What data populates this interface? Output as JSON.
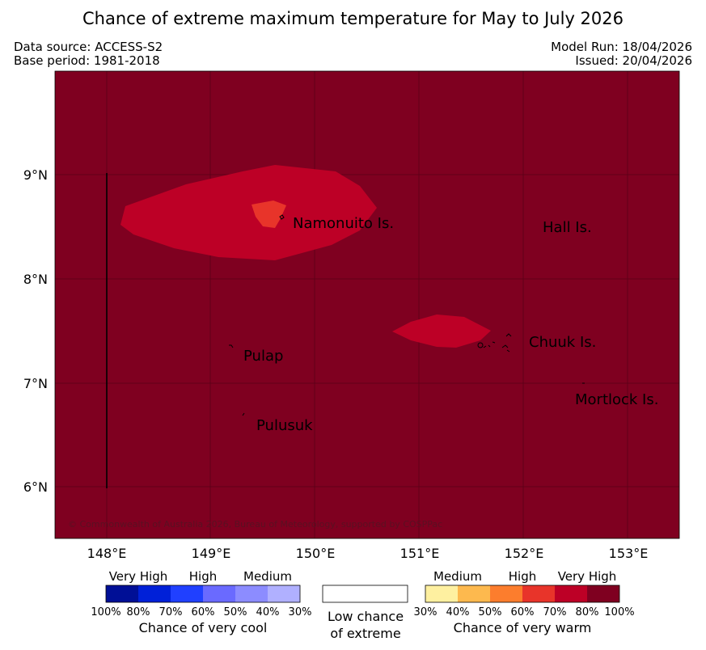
{
  "title": "Chance of extreme maximum temperature for May to July 2026",
  "meta": {
    "data_source": "Data source: ACCESS-S2",
    "base_period": "Base period: 1981-2018",
    "model_run": "Model Run: 18/04/2026",
    "issued": "Issued: 20/04/2026"
  },
  "map": {
    "background_color": "#7f0020",
    "lat_labels": [
      "9°N",
      "8°N",
      "7°N",
      "6°N"
    ],
    "lon_labels": [
      "148°E",
      "149°E",
      "150°E",
      "151°E",
      "152°E",
      "153°E"
    ],
    "places": [
      "Namonuito Is.",
      "Hall Is.",
      "Chuuk Is.",
      "Pulap",
      "Mortlock Is.",
      "Pulusuk"
    ],
    "copyright": "© Commonwealth of Australia 2026, Bureau of Meteorology, supported by COSPPac"
  },
  "legend": {
    "cool_heads": [
      "Very High",
      "High",
      "Medium"
    ],
    "cool_colors": [
      "#000f96",
      "#0020d8",
      "#2040ff",
      "#6a6aff",
      "#8c8cff",
      "#b0b0ff"
    ],
    "cool_ticks": [
      "100%",
      "80%",
      "70%",
      "60%",
      "50%",
      "40%",
      "30%"
    ],
    "cool_caption": "Chance of very cool",
    "low_line1": "Low chance",
    "low_line2": "of extreme",
    "warm_heads": [
      "Medium",
      "High",
      "Very High"
    ],
    "warm_colors": [
      "#fef0a0",
      "#fdb94e",
      "#fc7d2d",
      "#e8342a",
      "#bd0026",
      "#7f0020"
    ],
    "warm_ticks": [
      "30%",
      "40%",
      "50%",
      "60%",
      "70%",
      "80%",
      "100%"
    ],
    "warm_caption": "Chance of very warm"
  }
}
